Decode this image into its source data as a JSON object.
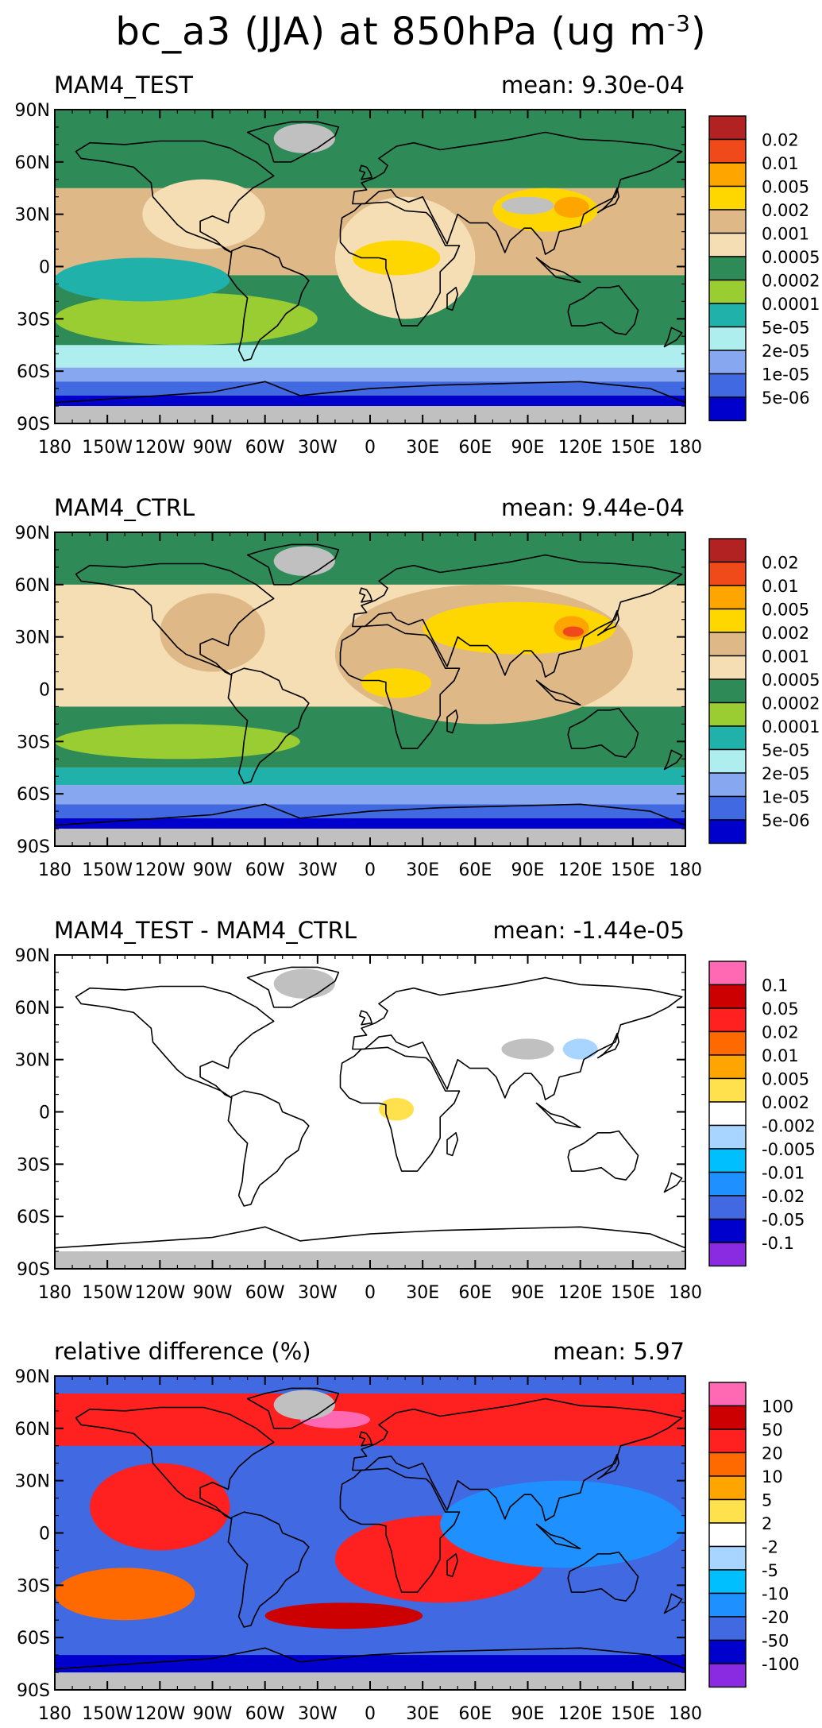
{
  "figure": {
    "title_prefix": "bc_a3 (JJA) at 850hPa (ug m",
    "title_exp": "-3",
    "title_suffix": ")"
  },
  "axes": {
    "lat_labels": [
      "90N",
      "60N",
      "30N",
      "0",
      "30S",
      "60S",
      "90S"
    ],
    "lon_labels": [
      "180",
      "150W",
      "120W",
      "90W",
      "60W",
      "30W",
      "0",
      "30E",
      "60E",
      "90E",
      "120E",
      "150E",
      "180"
    ]
  },
  "panels": [
    {
      "label": "MAM4_TEST",
      "mean_text": "mean: 9.30e-04",
      "legend": {
        "labels": [
          "0.02",
          "0.01",
          "0.005",
          "0.002",
          "0.001",
          "0.0005",
          "0.0002",
          "0.0001",
          "5e-05",
          "2e-05",
          "1e-05",
          "5e-06"
        ],
        "colors": [
          "#b22222",
          "#f04a1a",
          "#ffa500",
          "#ffd700",
          "#deb887",
          "#f5deb3",
          "#2e8b57",
          "#9acd32",
          "#20b2aa",
          "#afeeee",
          "#87a8f0",
          "#4169e1",
          "#0000cd"
        ]
      },
      "background": "#deb887",
      "blobs": [
        {
          "color": "#2e8b57",
          "lon": [
            -180,
            180
          ],
          "lat": [
            45,
            90
          ]
        },
        {
          "color": "#2e8b57",
          "lon": [
            -180,
            180
          ],
          "lat": [
            -50,
            -5
          ]
        },
        {
          "color": "#9acd32",
          "lon": [
            -180,
            -30
          ],
          "lat": [
            -45,
            -15
          ]
        },
        {
          "color": "#20b2aa",
          "lon": [
            -180,
            -80
          ],
          "lat": [
            -20,
            5
          ]
        },
        {
          "color": "#afeeee",
          "lon": [
            -180,
            180
          ],
          "lat": [
            -58,
            -45
          ]
        },
        {
          "color": "#87a8f0",
          "lon": [
            -180,
            180
          ],
          "lat": [
            -66,
            -58
          ]
        },
        {
          "color": "#4169e1",
          "lon": [
            -180,
            180
          ],
          "lat": [
            -74,
            -66
          ]
        },
        {
          "color": "#0000cd",
          "lon": [
            -180,
            180
          ],
          "lat": [
            -80,
            -74
          ]
        },
        {
          "color": "#f5deb3",
          "lon": [
            -130,
            -60
          ],
          "lat": [
            10,
            50
          ]
        },
        {
          "color": "#f5deb3",
          "lon": [
            -20,
            60
          ],
          "lat": [
            -30,
            40
          ]
        },
        {
          "color": "#ffd700",
          "lon": [
            -10,
            40
          ],
          "lat": [
            -5,
            15
          ]
        },
        {
          "color": "#ffd700",
          "lon": [
            70,
            130
          ],
          "lat": [
            20,
            45
          ]
        },
        {
          "color": "#ffa500",
          "lon": [
            105,
            125
          ],
          "lat": [
            28,
            40
          ]
        },
        {
          "color": "#c0c0c0",
          "lon": [
            -180,
            180
          ],
          "lat": [
            -90,
            -80
          ]
        },
        {
          "color": "#c0c0c0",
          "lon": [
            -55,
            -20
          ],
          "lat": [
            65,
            82
          ]
        },
        {
          "color": "#c0c0c0",
          "lon": [
            75,
            105
          ],
          "lat": [
            30,
            40
          ]
        }
      ]
    },
    {
      "label": "MAM4_CTRL",
      "mean_text": "mean: 9.44e-04",
      "legend": {
        "labels": [
          "0.02",
          "0.01",
          "0.005",
          "0.002",
          "0.001",
          "0.0005",
          "0.0002",
          "0.0001",
          "5e-05",
          "2e-05",
          "1e-05",
          "5e-06"
        ],
        "colors": [
          "#b22222",
          "#f04a1a",
          "#ffa500",
          "#ffd700",
          "#deb887",
          "#f5deb3",
          "#2e8b57",
          "#9acd32",
          "#20b2aa",
          "#afeeee",
          "#87a8f0",
          "#4169e1",
          "#0000cd"
        ]
      },
      "background": "#f5deb3",
      "blobs": [
        {
          "color": "#2e8b57",
          "lon": [
            -180,
            180
          ],
          "lat": [
            60,
            90
          ]
        },
        {
          "color": "#2e8b57",
          "lon": [
            -180,
            180
          ],
          "lat": [
            -45,
            -10
          ]
        },
        {
          "color": "#9acd32",
          "lon": [
            -180,
            -40
          ],
          "lat": [
            -40,
            -20
          ]
        },
        {
          "color": "#20b2aa",
          "lon": [
            -180,
            180
          ],
          "lat": [
            -55,
            -45
          ]
        },
        {
          "color": "#87a8f0",
          "lon": [
            -180,
            180
          ],
          "lat": [
            -66,
            -55
          ]
        },
        {
          "color": "#4169e1",
          "lon": [
            -180,
            180
          ],
          "lat": [
            -74,
            -66
          ]
        },
        {
          "color": "#0000cd",
          "lon": [
            -180,
            180
          ],
          "lat": [
            -80,
            -74
          ]
        },
        {
          "color": "#deb887",
          "lon": [
            -120,
            -60
          ],
          "lat": [
            10,
            55
          ]
        },
        {
          "color": "#deb887",
          "lon": [
            -20,
            150
          ],
          "lat": [
            -20,
            60
          ]
        },
        {
          "color": "#ffd700",
          "lon": [
            30,
            140
          ],
          "lat": [
            20,
            50
          ]
        },
        {
          "color": "#ffa500",
          "lon": [
            105,
            125
          ],
          "lat": [
            28,
            42
          ]
        },
        {
          "color": "#f04a1a",
          "lon": [
            110,
            122
          ],
          "lat": [
            30,
            36
          ]
        },
        {
          "color": "#ffd700",
          "lon": [
            -5,
            35
          ],
          "lat": [
            -5,
            12
          ]
        },
        {
          "color": "#c0c0c0",
          "lon": [
            -180,
            180
          ],
          "lat": [
            -90,
            -80
          ]
        },
        {
          "color": "#c0c0c0",
          "lon": [
            -55,
            -20
          ],
          "lat": [
            65,
            82
          ]
        }
      ]
    },
    {
      "label": "MAM4_TEST - MAM4_CTRL",
      "mean_text": "mean: -1.44e-05",
      "legend": {
        "labels": [
          "0.1",
          "0.05",
          "0.02",
          "0.01",
          "0.005",
          "0.002",
          "-0.002",
          "-0.005",
          "-0.01",
          "-0.02",
          "-0.05",
          "-0.1"
        ],
        "colors": [
          "#ff69b4",
          "#cc0000",
          "#ff2020",
          "#ff6a00",
          "#ffa500",
          "#ffe14d",
          "#ffffff",
          "#a8d5ff",
          "#00bfff",
          "#1e90ff",
          "#4169e1",
          "#0000cd",
          "#8a2be2"
        ]
      },
      "background": "#ffffff",
      "blobs": [
        {
          "color": "#c0c0c0",
          "lon": [
            -180,
            180
          ],
          "lat": [
            -90,
            -80
          ]
        },
        {
          "color": "#c0c0c0",
          "lon": [
            -55,
            -20
          ],
          "lat": [
            65,
            82
          ]
        },
        {
          "color": "#c0c0c0",
          "lon": [
            75,
            105
          ],
          "lat": [
            30,
            42
          ]
        },
        {
          "color": "#a8d5ff",
          "lon": [
            110,
            130
          ],
          "lat": [
            30,
            42
          ]
        },
        {
          "color": "#ffe14d",
          "lon": [
            5,
            25
          ],
          "lat": [
            -5,
            8
          ]
        }
      ]
    },
    {
      "label": "relative difference (%)",
      "mean_text": "mean:  5.97",
      "legend": {
        "labels": [
          "100",
          "50",
          "20",
          "10",
          "5",
          "2",
          "-2",
          "-5",
          "-10",
          "-20",
          "-50",
          "-100"
        ],
        "colors": [
          "#ff69b4",
          "#cc0000",
          "#ff2020",
          "#ff6a00",
          "#ffa500",
          "#ffe14d",
          "#ffffff",
          "#a8d5ff",
          "#00bfff",
          "#1e90ff",
          "#4169e1",
          "#0000cd",
          "#8a2be2"
        ]
      },
      "background": "#4169e1",
      "blobs": [
        {
          "color": "#ff2020",
          "lon": [
            -180,
            180
          ],
          "lat": [
            50,
            80
          ]
        },
        {
          "color": "#ff2020",
          "lon": [
            -160,
            -80
          ],
          "lat": [
            -10,
            40
          ]
        },
        {
          "color": "#ff2020",
          "lon": [
            -20,
            100
          ],
          "lat": [
            -40,
            10
          ]
        },
        {
          "color": "#cc0000",
          "lon": [
            -60,
            30
          ],
          "lat": [
            -55,
            -40
          ]
        },
        {
          "color": "#1e90ff",
          "lon": [
            40,
            180
          ],
          "lat": [
            -20,
            30
          ]
        },
        {
          "color": "#ff6a00",
          "lon": [
            -180,
            -100
          ],
          "lat": [
            -50,
            -20
          ]
        },
        {
          "color": "#ff69b4",
          "lon": [
            -40,
            0
          ],
          "lat": [
            60,
            70
          ]
        },
        {
          "color": "#0000cd",
          "lon": [
            -180,
            180
          ],
          "lat": [
            -80,
            -70
          ]
        },
        {
          "color": "#c0c0c0",
          "lon": [
            -180,
            180
          ],
          "lat": [
            -90,
            -80
          ]
        },
        {
          "color": "#c0c0c0",
          "lon": [
            -55,
            -20
          ],
          "lat": [
            65,
            82
          ]
        }
      ]
    }
  ],
  "coastline_color": "#000000",
  "missing_color": "#c0c0c0"
}
